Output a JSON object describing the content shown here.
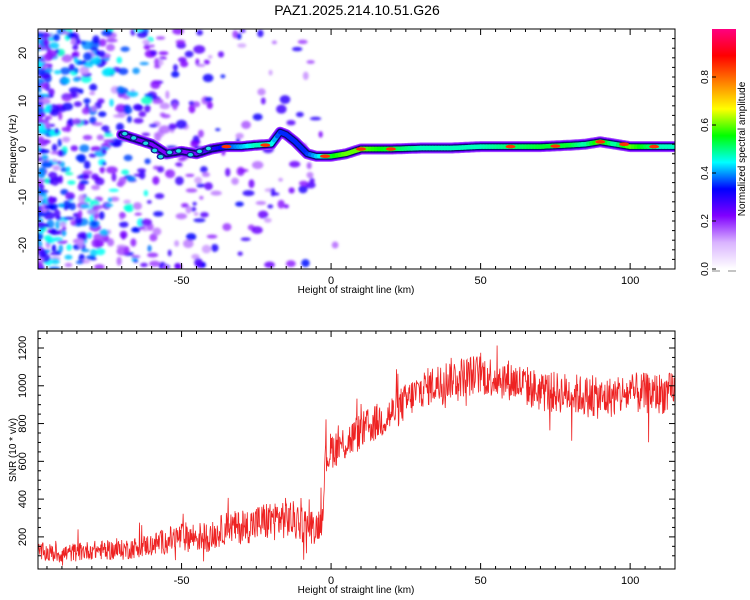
{
  "figure_title": "PAZ1.2025.214.10.51.G26",
  "chart_data": [
    {
      "type": "heatmap",
      "xlabel": "Height of straight line (km)",
      "ylabel": "Frequency (Hz)",
      "xlim": [
        -98,
        115
      ],
      "ylim": [
        -25,
        25
      ],
      "x_ticks": [
        -50,
        0,
        50,
        100
      ],
      "y_ticks": [
        -20,
        -10,
        0,
        10,
        20
      ],
      "colorbar": {
        "label": "Normalized spectral amplitude",
        "range": [
          0,
          1
        ],
        "ticks": [
          0.0,
          0.2,
          0.4,
          0.6,
          0.8
        ],
        "colors": [
          "#ffffff",
          "#d9b3ff",
          "#8000ff",
          "#0000ff",
          "#00ffff",
          "#00ff00",
          "#ffff00",
          "#ff8000",
          "#ff0000",
          "#ff0080"
        ]
      },
      "ridge": {
        "x": [
          -70,
          -65,
          -60,
          -55,
          -50,
          -45,
          -40,
          -35,
          -30,
          -25,
          -20,
          -17,
          -15,
          -12,
          -8,
          -5,
          0,
          5,
          10,
          20,
          30,
          40,
          50,
          60,
          70,
          80,
          85,
          90,
          95,
          100,
          105,
          110,
          115
        ],
        "frequency": [
          3.0,
          2.0,
          1.0,
          -1.0,
          -0.5,
          -1.0,
          0.0,
          0.5,
          0.5,
          0.8,
          1.0,
          3.5,
          3.0,
          1.5,
          -1.0,
          -1.5,
          -1.5,
          -1.0,
          0.0,
          0.0,
          0.2,
          0.2,
          0.5,
          0.5,
          0.5,
          0.8,
          1.0,
          1.5,
          1.0,
          0.5,
          0.5,
          0.5,
          0.5
        ],
        "amplitude": [
          0.3,
          0.3,
          0.3,
          0.3,
          0.3,
          0.3,
          0.4,
          0.5,
          0.6,
          0.7,
          0.7,
          0.5,
          0.5,
          0.5,
          0.5,
          0.6,
          0.8,
          0.9,
          0.9,
          0.8,
          0.7,
          0.7,
          0.7,
          0.75,
          0.8,
          0.8,
          0.7,
          0.9,
          0.7,
          0.9,
          0.8,
          0.7,
          0.7
        ]
      }
    },
    {
      "type": "line",
      "xlabel": "Height of straight line (km)",
      "ylabel": "SNR (10 * v/v)",
      "xlim": [
        -98,
        115
      ],
      "ylim": [
        30,
        1290
      ],
      "x_ticks": [
        -50,
        0,
        50,
        100
      ],
      "y_ticks": [
        200,
        400,
        600,
        800,
        1000,
        1200
      ],
      "series": [
        {
          "color": "#ee2222",
          "x": [
            -98,
            -90,
            -80,
            -70,
            -60,
            -50,
            -40,
            -35,
            -30,
            -25,
            -20,
            -15,
            -10,
            -5,
            -3,
            -2,
            0,
            5,
            10,
            20,
            30,
            40,
            50,
            60,
            70,
            80,
            90,
            100,
            110,
            115
          ],
          "mean": [
            120,
            110,
            130,
            130,
            160,
            200,
            200,
            250,
            250,
            270,
            290,
            300,
            270,
            250,
            300,
            600,
            660,
            700,
            760,
            850,
            980,
            1040,
            1060,
            1030,
            970,
            960,
            930,
            960,
            960,
            960
          ],
          "noise_amplitude": [
            50,
            50,
            50,
            55,
            60,
            80,
            80,
            85,
            90,
            100,
            110,
            110,
            100,
            90,
            90,
            90,
            100,
            100,
            100,
            100,
            100,
            110,
            110,
            110,
            110,
            110,
            110,
            110,
            110,
            110
          ]
        }
      ]
    }
  ]
}
